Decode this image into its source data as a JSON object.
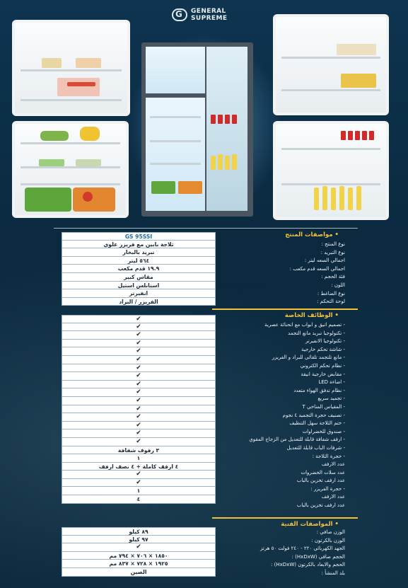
{
  "brand": {
    "mark": "G",
    "line1": "GENERAL",
    "line2": "SUPREME"
  },
  "colors": {
    "accent": "#f3c23a",
    "background": "#0d2d43",
    "table_bg": "#ffffff"
  },
  "product_specs": {
    "title": "مواصفات المنتج",
    "labels": [
      "نوع المنتج :",
      "نوع التبريد :",
      "اجمالي السعه ليتر :",
      "اجمالي السعه  قدم مكعب :",
      "فئة الحجم :",
      "اللون :",
      "نوع الضاغط :",
      "لوحة التحكم :"
    ],
    "model": "GS 95SSI",
    "values": [
      "ثلاجة بابين مع فريزر علوي",
      "تبريد بالبخار",
      "٥٦٤ ليتر",
      "١٩.٩ قدم مكعب",
      "مقاس كبير",
      "استانلس استيل",
      "انفيرتر",
      "الفريزر / البراد"
    ]
  },
  "features": {
    "title": "الوظائف الخاصة",
    "labels": [
      "- تصميم انيق و ابواب مع انحنائة عصرية",
      "- تكنولوجيا تبريد مانع التجمد",
      "- تكنولوجيا الانفيرتر",
      "- شاشة تحكم خارجية",
      "- مانع تلتجمد تلقائي للبراد و الفريزر",
      "- نظام تحكم الكتروني",
      "- مقابض خارجية انيقة",
      "- اضاءة LED",
      "- نظام تدفق الهواء متعدد",
      "- تجميد  سريع",
      "- المقياس المناخي T",
      "- تصنيف حجرة التجميد ٤ نجوم",
      "- ختم الثلاجة سهل التنظيف",
      "- صندوق للخضراوات",
      "- ارفف شفافة قابلة للتعديل من الزجاج المقوي",
      "- شرفات الباب قابلة للتعديل",
      "- حجرة الثلاجة :",
      "عدد الارفف",
      "عدد سلات الخضروات",
      "عدد ارفف تخزين بالباب",
      "- حجرة الفريزر :",
      "عدد الارفف",
      "عدد ارفف تخزين بالباب"
    ],
    "values": [
      "✔",
      "✔",
      "✔",
      "✔",
      "✔",
      "✔",
      "✔",
      "✔",
      "✔",
      "✔",
      "✔",
      "✔",
      "✔",
      "✔",
      "✔",
      "✔",
      "٣ رفوف شفافة",
      "١",
      "٤ ارفف كاملة + ٤ نصف ارفف",
      "✔",
      "✔",
      "١",
      "٤"
    ]
  },
  "tech_specs": {
    "title": "المواصفات الفنية",
    "labels": [
      "الوزن صافي :",
      "الوزن بالكرتون :",
      "الجهد الكهربائي ٢٢٠ - ٢٤٠ فولت ٥٠ هرتز",
      "الحجم صافي (HxDxW) :",
      "الحجم والابعاد بالكرتون (HxDxW) :",
      "بلد المنشأ :"
    ],
    "values": [
      "٨٩ كيلو",
      "٩٧ كيلو",
      "✔",
      "١٨٥٠ × ٧٠٦ × ٧٩٤ مم",
      "١٩٢٥ × ٧٢٨ × ٨٣٧ مم",
      "الصين"
    ]
  }
}
